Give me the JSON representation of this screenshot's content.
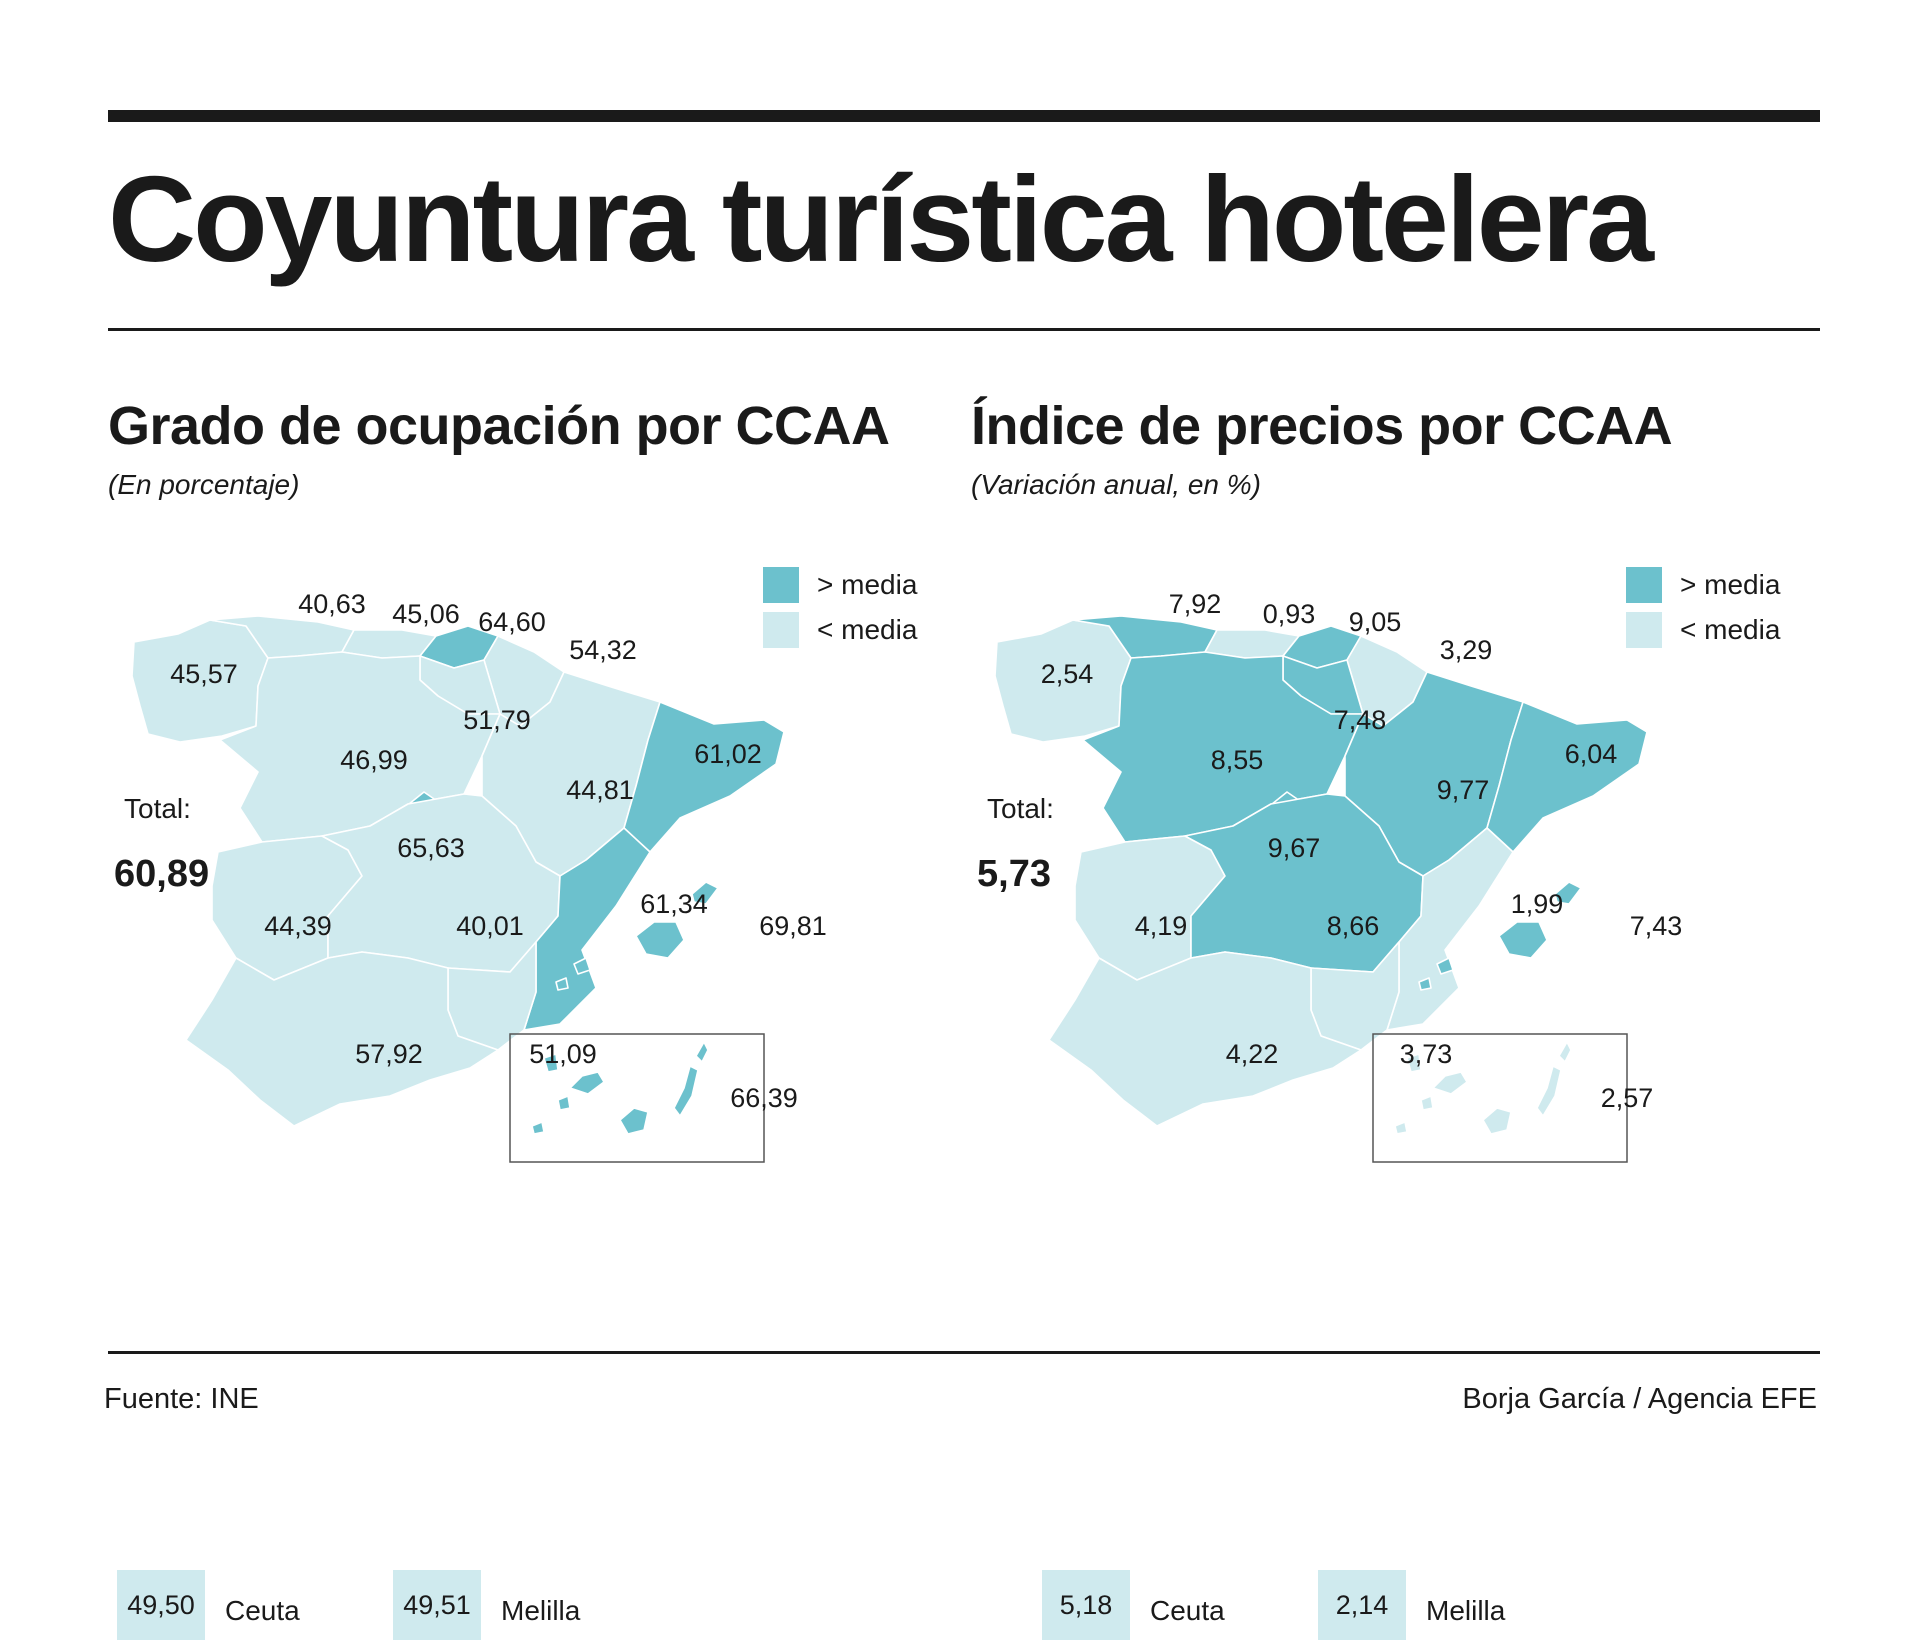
{
  "title": "Coyuntura turística hotelera",
  "colors": {
    "above": "#6cc1cd",
    "below": "#cfeaee",
    "text": "#1a1a1a"
  },
  "legend": {
    "above": "> media",
    "below": "< media"
  },
  "total_label": "Total:",
  "footer": {
    "source": "Fuente: INE",
    "credit": "Borja García / Agencia EFE"
  },
  "maps": [
    {
      "title": "Grado de ocupación por CCAA",
      "subtitle": "(En porcentaje)",
      "total": "60,89",
      "regions": [
        {
          "id": "galicia",
          "value": "45,57",
          "status": "below"
        },
        {
          "id": "asturias",
          "value": "40,63",
          "status": "below"
        },
        {
          "id": "cantabria",
          "value": "45,06",
          "status": "below"
        },
        {
          "id": "pais-vasco",
          "value": "64,60",
          "status": "above"
        },
        {
          "id": "navarra",
          "value": "54,32",
          "status": "below"
        },
        {
          "id": "la-rioja",
          "value": "51,79",
          "status": "below"
        },
        {
          "id": "castilla-leon",
          "value": "46,99",
          "status": "below"
        },
        {
          "id": "aragon",
          "value": "44,81",
          "status": "below"
        },
        {
          "id": "cataluna",
          "value": "61,02",
          "status": "above"
        },
        {
          "id": "madrid",
          "value": "65,63",
          "status": "above"
        },
        {
          "id": "extremadura",
          "value": "44,39",
          "status": "below"
        },
        {
          "id": "castilla-la-mancha",
          "value": "40,01",
          "status": "below"
        },
        {
          "id": "c-valenciana",
          "value": "61,34",
          "status": "above"
        },
        {
          "id": "baleares",
          "value": "69,81",
          "status": "above"
        },
        {
          "id": "murcia",
          "value": "51,09",
          "status": "below"
        },
        {
          "id": "andalucia",
          "value": "57,92",
          "status": "below"
        },
        {
          "id": "canarias",
          "value": "66,39",
          "status": "above"
        }
      ],
      "ceuta": {
        "name": "Ceuta",
        "value": "49,50",
        "status": "below"
      },
      "melilla": {
        "name": "Melilla",
        "value": "49,51",
        "status": "below"
      }
    },
    {
      "title": "Índice de precios por CCAA",
      "subtitle": "(Variación anual, en %)",
      "total": "5,73",
      "regions": [
        {
          "id": "galicia",
          "value": "2,54",
          "status": "below"
        },
        {
          "id": "asturias",
          "value": "7,92",
          "status": "above"
        },
        {
          "id": "cantabria",
          "value": "0,93",
          "status": "below"
        },
        {
          "id": "pais-vasco",
          "value": "9,05",
          "status": "above"
        },
        {
          "id": "navarra",
          "value": "3,29",
          "status": "below"
        },
        {
          "id": "la-rioja",
          "value": "7,48",
          "status": "above"
        },
        {
          "id": "castilla-leon",
          "value": "8,55",
          "status": "above"
        },
        {
          "id": "aragon",
          "value": "9,77",
          "status": "above"
        },
        {
          "id": "cataluna",
          "value": "6,04",
          "status": "above"
        },
        {
          "id": "madrid",
          "value": "9,67",
          "status": "above"
        },
        {
          "id": "extremadura",
          "value": "4,19",
          "status": "below"
        },
        {
          "id": "castilla-la-mancha",
          "value": "8,66",
          "status": "above"
        },
        {
          "id": "c-valenciana",
          "value": "1,99",
          "status": "below"
        },
        {
          "id": "baleares",
          "value": "7,43",
          "status": "above"
        },
        {
          "id": "murcia",
          "value": "3,73",
          "status": "below"
        },
        {
          "id": "andalucia",
          "value": "4,22",
          "status": "below"
        },
        {
          "id": "canarias",
          "value": "2,57",
          "status": "below"
        }
      ],
      "ceuta": {
        "name": "Ceuta",
        "value": "5,18",
        "status": "below"
      },
      "melilla": {
        "name": "Melilla",
        "value": "2,14",
        "status": "below"
      }
    }
  ]
}
